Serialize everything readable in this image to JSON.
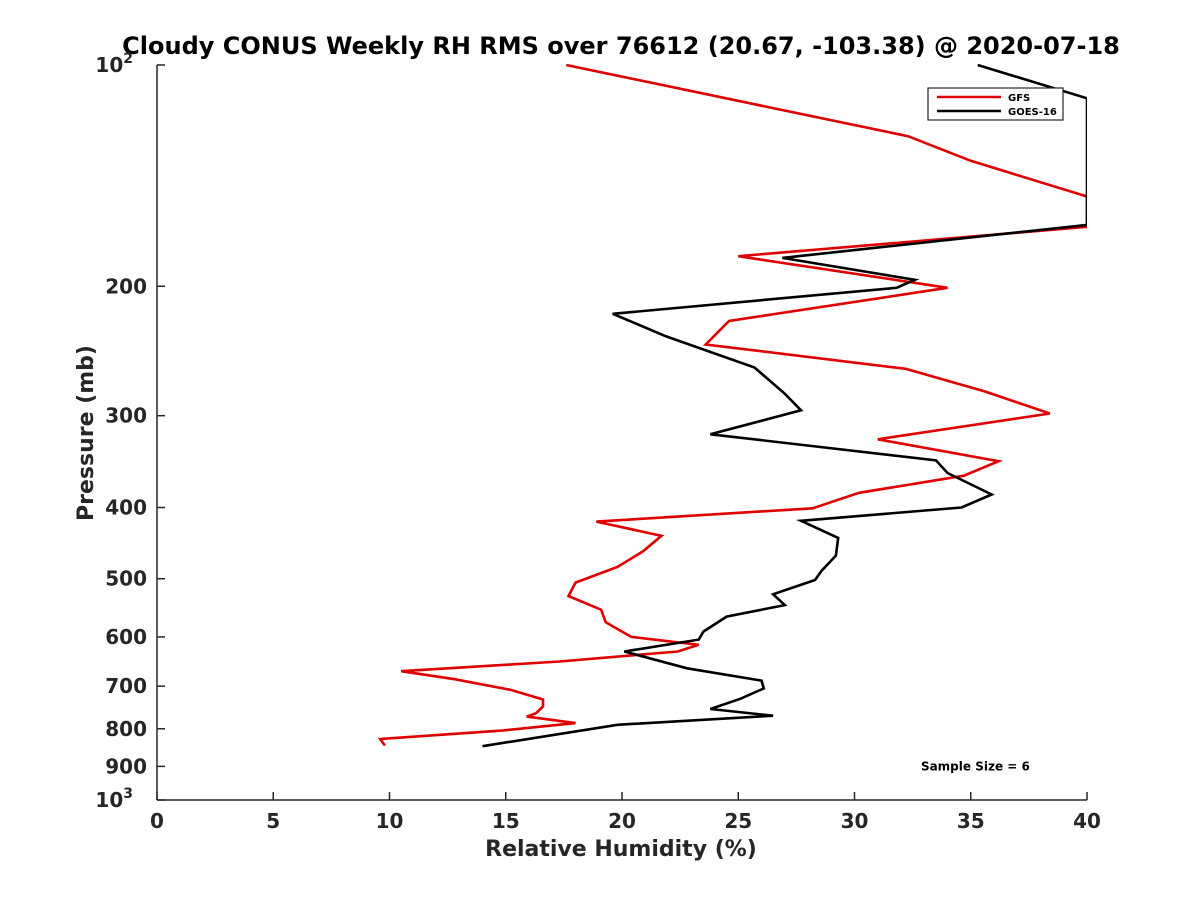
{
  "chart_data": {
    "type": "line",
    "title": "Cloudy CONUS Weekly RH RMS over 76612 (20.67, -103.38) @ 2020-07-18",
    "xlabel": "Relative Humidity (%)",
    "ylabel": "Pressure (mb)",
    "xlim": [
      0,
      40
    ],
    "ylim": [
      100,
      1000
    ],
    "yscale": "log",
    "y_reversed": true,
    "grid": false,
    "legend_position": "top-right",
    "x_ticks": [
      {
        "value": 0,
        "label": "0"
      },
      {
        "value": 5,
        "label": "5"
      },
      {
        "value": 10,
        "label": "10"
      },
      {
        "value": 15,
        "label": "15"
      },
      {
        "value": 20,
        "label": "20"
      },
      {
        "value": 25,
        "label": "25"
      },
      {
        "value": 30,
        "label": "30"
      },
      {
        "value": 35,
        "label": "35"
      },
      {
        "value": 40,
        "label": "40"
      }
    ],
    "y_ticks": [
      {
        "value": 100,
        "base": "10",
        "exp": "2"
      },
      {
        "value": 200,
        "label": "200"
      },
      {
        "value": 300,
        "label": "300"
      },
      {
        "value": 400,
        "label": "400"
      },
      {
        "value": 500,
        "label": "500"
      },
      {
        "value": 600,
        "label": "600"
      },
      {
        "value": 700,
        "label": "700"
      },
      {
        "value": 800,
        "label": "800"
      },
      {
        "value": 900,
        "label": "900"
      },
      {
        "value": 1000,
        "base": "10",
        "exp": "3"
      }
    ],
    "annotations": [
      {
        "text": "Sample Size = 6",
        "x": 35.2,
        "y": 900
      }
    ],
    "series": [
      {
        "name": "GFS",
        "color": "#e00000",
        "points": [
          [
            17.6,
            100
          ],
          [
            32.3,
            125
          ],
          [
            35.0,
            135
          ],
          [
            40.0,
            151
          ],
          [
            40.0,
            151
          ],
          [
            40.0,
            166
          ],
          [
            25.0,
            182
          ],
          [
            34.0,
            201
          ],
          [
            24.6,
            223
          ],
          [
            23.6,
            240
          ],
          [
            32.2,
            259
          ],
          [
            35.6,
            278
          ],
          [
            38.4,
            298
          ],
          [
            31.0,
            323
          ],
          [
            36.2,
            346
          ],
          [
            34.7,
            362
          ],
          [
            30.2,
            382
          ],
          [
            28.2,
            401
          ],
          [
            18.9,
            418
          ],
          [
            21.7,
            437
          ],
          [
            20.9,
            459
          ],
          [
            19.8,
            482
          ],
          [
            18.0,
            506
          ],
          [
            17.7,
            528
          ],
          [
            19.1,
            551
          ],
          [
            19.3,
            573
          ],
          [
            20.4,
            600
          ],
          [
            23.3,
            615
          ],
          [
            22.4,
            628
          ],
          [
            17.3,
            648
          ],
          [
            10.5,
            668
          ],
          [
            12.8,
            685
          ],
          [
            15.2,
            708
          ],
          [
            16.6,
            730
          ],
          [
            16.6,
            746
          ],
          [
            16.3,
            762
          ],
          [
            15.9,
            770
          ],
          [
            18.0,
            786
          ],
          [
            14.9,
            804
          ],
          [
            9.6,
            826
          ],
          [
            9.8,
            843
          ]
        ]
      },
      {
        "name": "GOES-16",
        "color": "#000000",
        "points": [
          [
            35.3,
            100
          ],
          [
            40.0,
            111
          ],
          [
            40.0,
            165
          ],
          [
            26.9,
            183
          ],
          [
            32.6,
            196
          ],
          [
            31.8,
            201
          ],
          [
            19.6,
            218
          ],
          [
            21.9,
            234
          ],
          [
            25.7,
            258
          ],
          [
            27.0,
            280
          ],
          [
            27.7,
            295
          ],
          [
            23.8,
            318
          ],
          [
            33.5,
            345
          ],
          [
            34.0,
            359
          ],
          [
            35.9,
            384
          ],
          [
            34.6,
            400
          ],
          [
            27.7,
            417
          ],
          [
            29.3,
            440
          ],
          [
            29.2,
            465
          ],
          [
            28.6,
            487
          ],
          [
            28.3,
            502
          ],
          [
            26.5,
            525
          ],
          [
            27.0,
            543
          ],
          [
            24.5,
            563
          ],
          [
            23.5,
            590
          ],
          [
            23.3,
            605
          ],
          [
            20.1,
            628
          ],
          [
            22.8,
            662
          ],
          [
            26.0,
            688
          ],
          [
            26.1,
            705
          ],
          [
            25.1,
            728
          ],
          [
            23.8,
            752
          ],
          [
            26.5,
            768
          ],
          [
            19.8,
            790
          ],
          [
            14.0,
            845
          ]
        ]
      }
    ]
  }
}
